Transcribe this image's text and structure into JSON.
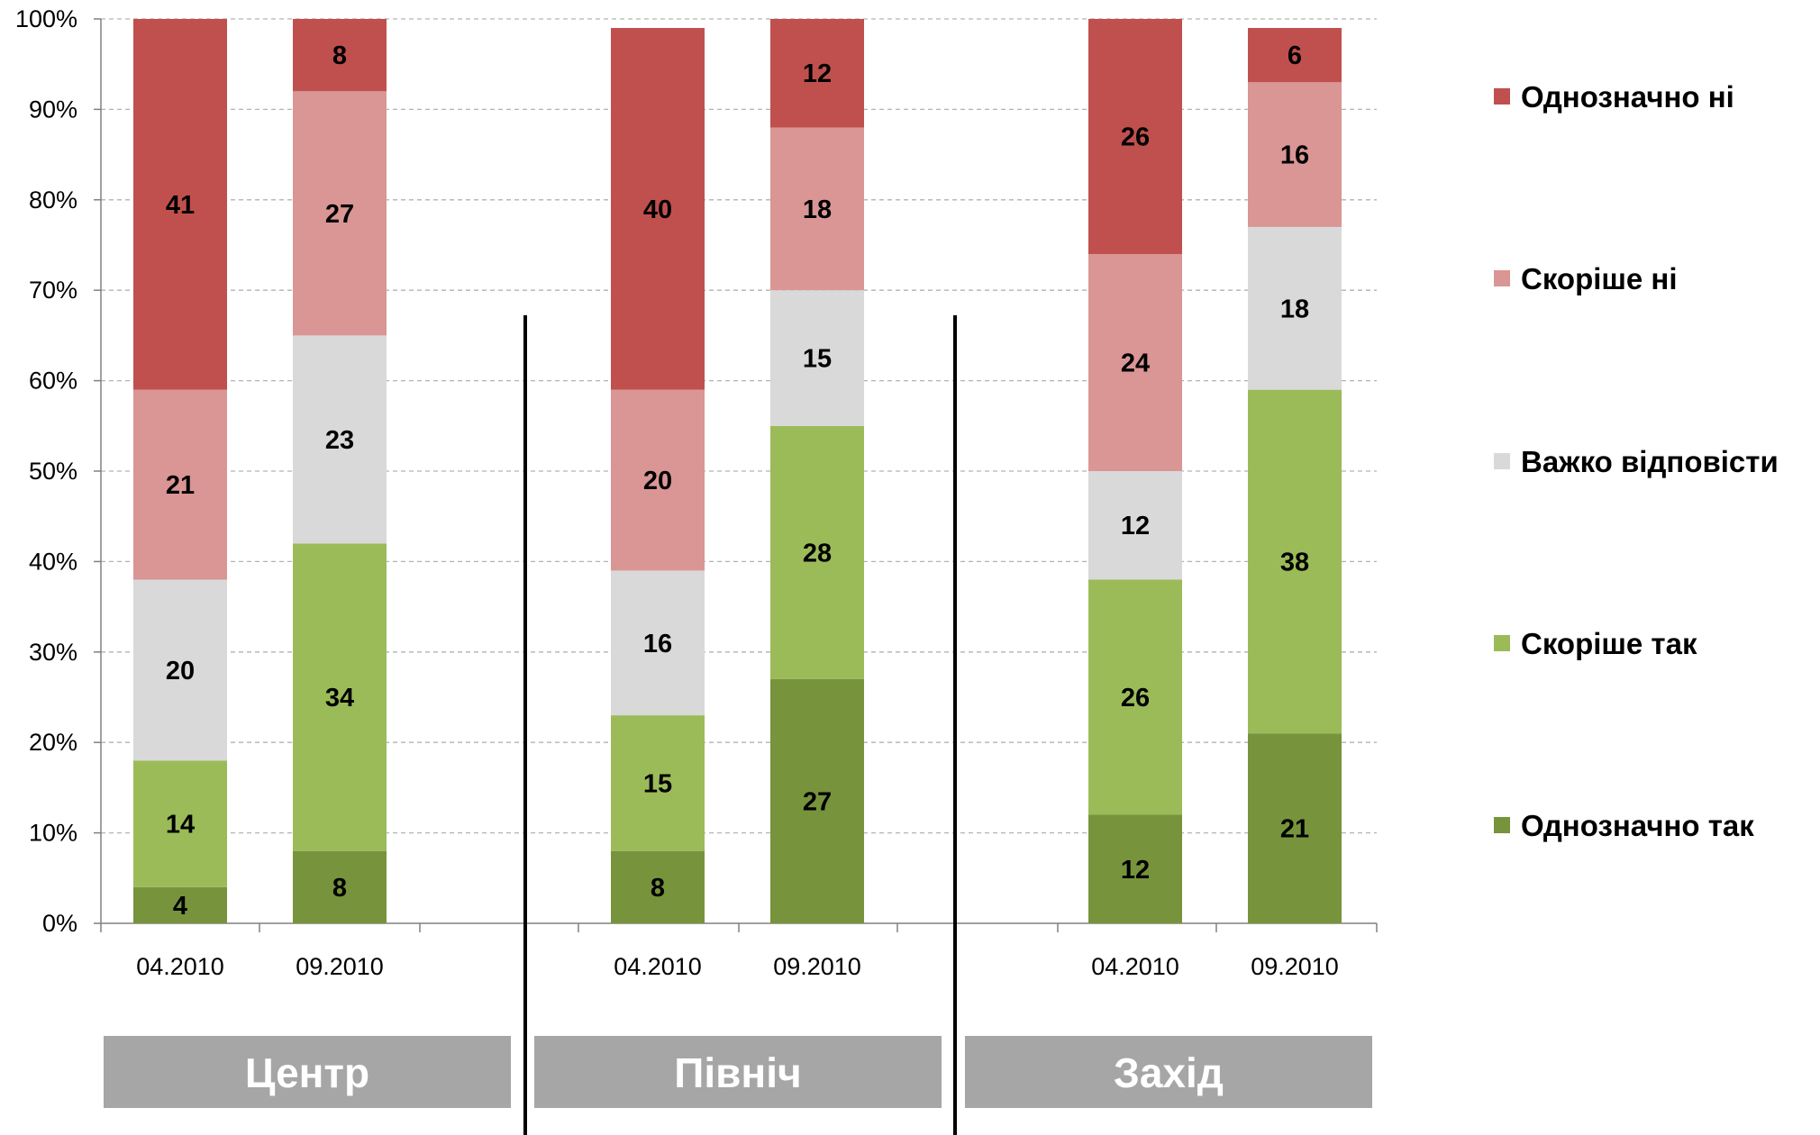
{
  "chart_data": {
    "type": "bar",
    "stacked": true,
    "percent": true,
    "ylim": [
      0,
      100
    ],
    "yticks": [
      "0%",
      "10%",
      "20%",
      "30%",
      "40%",
      "50%",
      "60%",
      "70%",
      "80%",
      "90%",
      "100%"
    ],
    "grid": true,
    "legend_position": "right",
    "groups": [
      {
        "name": "Центр",
        "categories": [
          "04.2010",
          "09.2010"
        ]
      },
      {
        "name": "Північ",
        "categories": [
          "04.2010",
          "09.2010"
        ]
      },
      {
        "name": "Захід",
        "categories": [
          "04.2010",
          "09.2010"
        ]
      }
    ],
    "series": [
      {
        "name": "Однозначно так",
        "color": "#77933c",
        "values": [
          4,
          8,
          8,
          27,
          12,
          21
        ]
      },
      {
        "name": "Скоріше так",
        "color": "#9bbb59",
        "values": [
          14,
          34,
          15,
          28,
          26,
          38
        ]
      },
      {
        "name": "Важко відповісти",
        "color": "#d9d9d9",
        "values": [
          20,
          23,
          16,
          15,
          12,
          18
        ]
      },
      {
        "name": "Скоріше ні",
        "color": "#d99694",
        "values": [
          21,
          27,
          20,
          18,
          24,
          16
        ]
      },
      {
        "name": "Однозначно ні",
        "color": "#c0504d",
        "values": [
          41,
          8,
          40,
          12,
          26,
          6
        ]
      }
    ],
    "group_label_color": "#a6a6a6"
  }
}
